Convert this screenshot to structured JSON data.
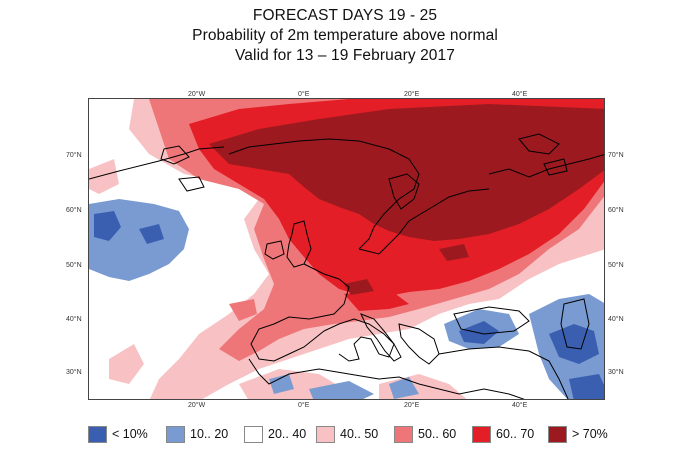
{
  "title": {
    "line1": "FORECAST DAYS 19 - 25",
    "line2": "Probability of 2m temperature above normal",
    "line3": "Valid for 13 – 19 February 2017"
  },
  "map": {
    "region": "Europe",
    "lon_range": [
      -38,
      56
    ],
    "lat_range": [
      25,
      80
    ],
    "top_lon_labels": [
      "20°W",
      "0°E",
      "20°E",
      "40°E"
    ],
    "bottom_lon_labels": [
      "20°W",
      "0°E",
      "20°E",
      "40°E"
    ],
    "left_lat_labels": [
      "70°N",
      "60°N",
      "50°N",
      "40°N",
      "30°N"
    ],
    "right_lat_labels": [
      "70°N",
      "60°N",
      "50°N",
      "40°N",
      "30°N"
    ]
  },
  "legend": [
    {
      "label": "< 10%",
      "color": "#3a5fb0"
    },
    {
      "label": "10.. 20",
      "color": "#7a9bd2"
    },
    {
      "label": "20.. 40",
      "color": "#ffffff"
    },
    {
      "label": "40.. 50",
      "color": "#f8c2c4"
    },
    {
      "label": "50.. 60",
      "color": "#ef7678"
    },
    {
      "label": "60.. 70",
      "color": "#e41e26"
    },
    {
      "label": "> 70%",
      "color": "#9c1a1f"
    }
  ]
}
